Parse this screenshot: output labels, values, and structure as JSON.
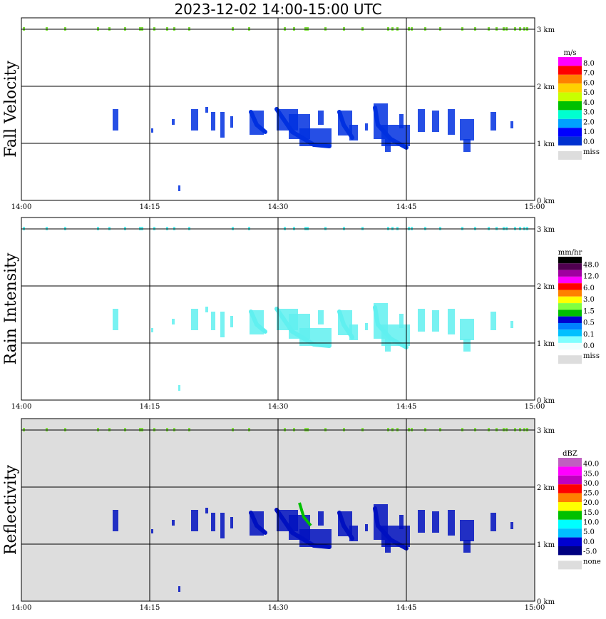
{
  "title": "2023-12-02  14:00-15:00 UTC",
  "chart_data": [
    {
      "type": "heatmap",
      "ylabel": "Fall Velocity",
      "x_ticks": [
        "14:00",
        "14:15",
        "14:30",
        "14:45",
        "15:00"
      ],
      "y_ticks": [
        "0 km",
        "1 km",
        "2 km",
        "3 km"
      ],
      "ylim": [
        0,
        3.2
      ],
      "legend": {
        "unit": "m/s",
        "labels": [
          "8.0",
          "7.0",
          "6.0",
          "5.0",
          "4.0",
          "3.0",
          "2.0",
          "1.0",
          "0.0"
        ],
        "colors": [
          "#ff00ff",
          "#ff0000",
          "#ff8000",
          "#ffd000",
          "#c8ff00",
          "#00c000",
          "#00ffd0",
          "#00a0ff",
          "#0000ff",
          "#0030d0"
        ],
        "missing_label": "miss",
        "missing_color": "#dddddd"
      },
      "background": "#ffffff",
      "echo_color": "#0030e0"
    },
    {
      "type": "heatmap",
      "ylabel": "Rain Intensity",
      "x_ticks": [
        "14:00",
        "14:15",
        "14:30",
        "14:45",
        "15:00"
      ],
      "y_ticks": [
        "0 km",
        "1 km",
        "2 km",
        "3 km"
      ],
      "ylim": [
        0,
        3.2
      ],
      "legend": {
        "unit": "mm/hr",
        "labels": [
          "48.0",
          "12.0",
          "6.0",
          "3.0",
          "1.5",
          "0.5",
          "0.1",
          "0.0"
        ],
        "colors": [
          "#000000",
          "#500050",
          "#a000a0",
          "#ff00ff",
          "#ff0000",
          "#ff8000",
          "#ffff00",
          "#80ff40",
          "#00c000",
          "#0000d0",
          "#0080ff",
          "#00c0ff",
          "#80ffff",
          "#f0ffff"
        ],
        "missing_label": "miss",
        "missing_color": "#dddddd"
      },
      "background": "#ffffff",
      "echo_color": "#60f0f0"
    },
    {
      "type": "heatmap",
      "ylabel": "Reflectivity",
      "x_ticks": [
        "14:00",
        "14:15",
        "14:30",
        "14:45",
        "15:00"
      ],
      "y_ticks": [
        "0 km",
        "1 km",
        "2 km",
        "3 km"
      ],
      "ylim": [
        0,
        3.2
      ],
      "legend": {
        "unit": "dBZ",
        "labels": [
          "40.0",
          "35.0",
          "30.0",
          "25.0",
          "20.0",
          "15.0",
          "10.0",
          "5.0",
          "0.0",
          "-5.0"
        ],
        "colors": [
          "#c060c0",
          "#ff00ff",
          "#c000c0",
          "#ff0000",
          "#ff8000",
          "#ffff00",
          "#00c000",
          "#00ffff",
          "#00c0ff",
          "#0000d0",
          "#000080"
        ],
        "missing_label": "none",
        "missing_color": "#dddddd"
      },
      "background": "#dddddd",
      "echo_color": "#0010c0"
    }
  ]
}
